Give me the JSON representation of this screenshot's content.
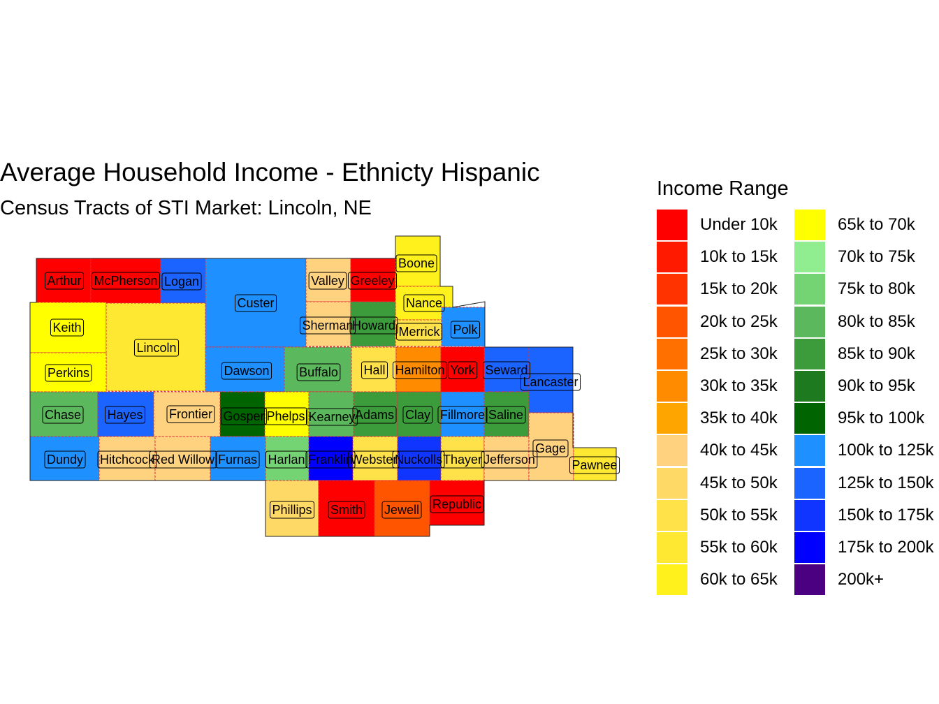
{
  "title": "Average Household Income - Ethnicty Hispanic",
  "subtitle": "Census Tracts of STI Market: Lincoln, NE",
  "legend": {
    "title": "Income Range",
    "items": [
      {
        "label": "Under 10k",
        "color": "#ff0000"
      },
      {
        "label": "10k to 15k",
        "color": "#ff1a00"
      },
      {
        "label": "15k to 20k",
        "color": "#ff3300"
      },
      {
        "label": "20k to 25k",
        "color": "#ff5500"
      },
      {
        "label": "25k to 30k",
        "color": "#ff7000"
      },
      {
        "label": "30k to 35k",
        "color": "#ff8c00"
      },
      {
        "label": "35k to 40k",
        "color": "#ffa500"
      },
      {
        "label": "40k to 45k",
        "color": "#ffd27f"
      },
      {
        "label": "45k to 50k",
        "color": "#ffd966"
      },
      {
        "label": "50k to 55k",
        "color": "#ffe14a"
      },
      {
        "label": "55k to 60k",
        "color": "#ffe832"
      },
      {
        "label": "60k to 65k",
        "color": "#fff21c"
      },
      {
        "label": "65k to 70k",
        "color": "#ffff00"
      },
      {
        "label": "70k to 75k",
        "color": "#90ee90"
      },
      {
        "label": "75k to 80k",
        "color": "#74d474"
      },
      {
        "label": "80k to 85k",
        "color": "#5cb85c"
      },
      {
        "label": "85k to 90k",
        "color": "#3c9c3c"
      },
      {
        "label": "90k to 95k",
        "color": "#1e7a1e"
      },
      {
        "label": "95k to 100k",
        "color": "#006400"
      },
      {
        "label": "100k to 125k",
        "color": "#1e90ff"
      },
      {
        "label": "125k to 150k",
        "color": "#1c64ff"
      },
      {
        "label": "150k to 175k",
        "color": "#1035ff"
      },
      {
        "label": "175k to 200k",
        "color": "#0000ff"
      },
      {
        "label": "200k+",
        "color": "#4b0082"
      }
    ]
  },
  "counties": [
    {
      "name": "Arthur",
      "color": "#ff0000"
    },
    {
      "name": "McPherson",
      "color": "#ff0000"
    },
    {
      "name": "Logan",
      "color": "#1c64ff"
    },
    {
      "name": "Custer",
      "color": "#1e90ff"
    },
    {
      "name": "Valley",
      "color": "#ffd27f"
    },
    {
      "name": "Greeley",
      "color": "#ff0000"
    },
    {
      "name": "Boone",
      "color": "#fff21c"
    },
    {
      "name": "Nance",
      "color": "#fff21c"
    },
    {
      "name": "Keith",
      "color": "#ffff00"
    },
    {
      "name": "Lincoln",
      "color": "#ffe832"
    },
    {
      "name": "Sherman",
      "color": "#ffd27f"
    },
    {
      "name": "Howard",
      "color": "#3c9c3c"
    },
    {
      "name": "Merrick",
      "color": "#ffe14a"
    },
    {
      "name": "Polk",
      "color": "#1e90ff"
    },
    {
      "name": "Perkins",
      "color": "#ffff00"
    },
    {
      "name": "Dawson",
      "color": "#1e90ff"
    },
    {
      "name": "Buffalo",
      "color": "#5cb85c"
    },
    {
      "name": "Hall",
      "color": "#ffe14a"
    },
    {
      "name": "Hamilton",
      "color": "#ff8c00"
    },
    {
      "name": "York",
      "color": "#ff0000"
    },
    {
      "name": "Seward",
      "color": "#1c64ff"
    },
    {
      "name": "Lancaster",
      "color": "#1c64ff"
    },
    {
      "name": "Chase",
      "color": "#5cb85c"
    },
    {
      "name": "Hayes",
      "color": "#1c64ff"
    },
    {
      "name": "Frontier",
      "color": "#ffd27f"
    },
    {
      "name": "Gosper",
      "color": "#006400"
    },
    {
      "name": "Phelps",
      "color": "#ffff00"
    },
    {
      "name": "Kearney",
      "color": "#5cb85c"
    },
    {
      "name": "Adams",
      "color": "#3c9c3c"
    },
    {
      "name": "Clay",
      "color": "#3c9c3c"
    },
    {
      "name": "Fillmore",
      "color": "#1e90ff"
    },
    {
      "name": "Saline",
      "color": "#3c9c3c"
    },
    {
      "name": "Dundy",
      "color": "#1e90ff"
    },
    {
      "name": "Hitchcock",
      "color": "#ffd27f"
    },
    {
      "name": "Red Willow",
      "color": "#ffd27f"
    },
    {
      "name": "Furnas",
      "color": "#1e90ff"
    },
    {
      "name": "Harlan",
      "color": "#74d474"
    },
    {
      "name": "Franklin",
      "color": "#0000ff"
    },
    {
      "name": "Webster",
      "color": "#ffe14a"
    },
    {
      "name": "Nuckolls",
      "color": "#1035ff"
    },
    {
      "name": "Thayer",
      "color": "#ffe14a"
    },
    {
      "name": "Jefferson",
      "color": "#ffd27f"
    },
    {
      "name": "Gage",
      "color": "#ffd27f"
    },
    {
      "name": "Pawnee",
      "color": "#ffe832"
    },
    {
      "name": "Phillips",
      "color": "#ffd966"
    },
    {
      "name": "Smith",
      "color": "#ff0000"
    },
    {
      "name": "Jewell",
      "color": "#ff5500"
    },
    {
      "name": "Republic",
      "color": "#ff0000"
    }
  ]
}
